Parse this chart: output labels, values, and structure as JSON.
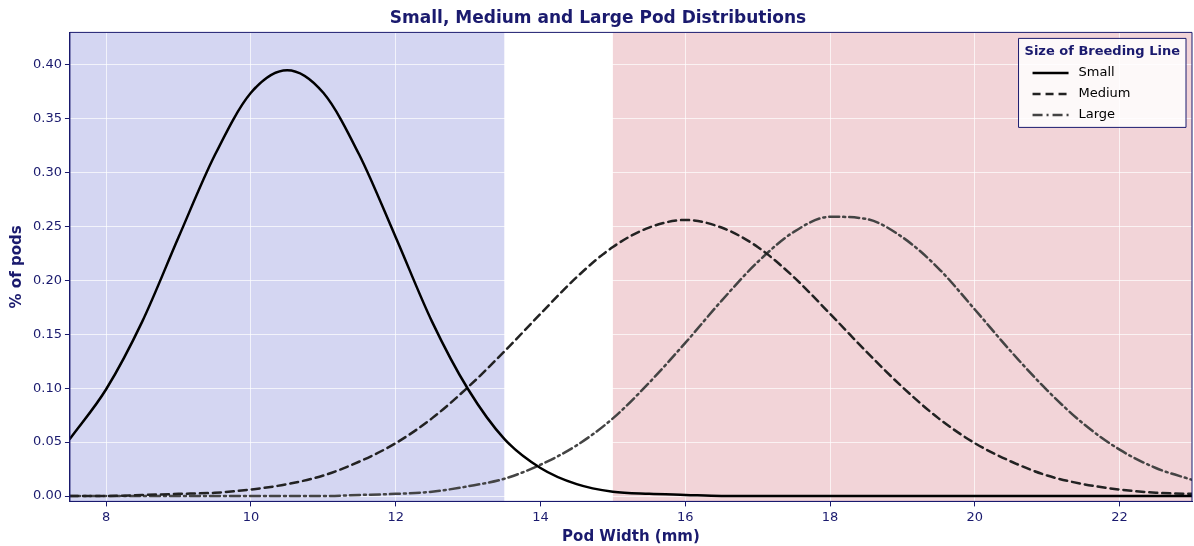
{
  "chart_data": {
    "type": "line",
    "title": "Small, Medium and Large Pod Distributions",
    "xlabel": "Pod Width (mm)",
    "ylabel": "% of pods",
    "legend_title": "Size of Breeding Line",
    "x": [
      7.5,
      8,
      8.5,
      9,
      9.5,
      10,
      10.5,
      11,
      11.5,
      12,
      12.5,
      13,
      13.5,
      14,
      14.5,
      15,
      15.5,
      16,
      16.5,
      17,
      17.5,
      18,
      18.5,
      19,
      19.5,
      20,
      20.5,
      21,
      21.5,
      22,
      22.5,
      23
    ],
    "series": [
      {
        "name": "Small",
        "color": "#000000",
        "line_style": "solid",
        "values": [
          0.053,
          0.099,
          0.162,
          0.24,
          0.316,
          0.374,
          0.395,
          0.374,
          0.316,
          0.24,
          0.162,
          0.099,
          0.053,
          0.026,
          0.011,
          0.004,
          0.002,
          0.001,
          0,
          0,
          0,
          0,
          0,
          0,
          0,
          0,
          0,
          0,
          0,
          0,
          0,
          0
        ]
      },
      {
        "name": "Medium",
        "color": "#222222",
        "line_style": "dashed",
        "values": [
          0,
          0,
          0.001,
          0.002,
          0.003,
          0.006,
          0.011,
          0.019,
          0.032,
          0.049,
          0.072,
          0.101,
          0.134,
          0.169,
          0.203,
          0.231,
          0.249,
          0.256,
          0.249,
          0.231,
          0.203,
          0.169,
          0.134,
          0.101,
          0.072,
          0.049,
          0.032,
          0.019,
          0.011,
          0.006,
          0.003,
          0.002
        ]
      },
      {
        "name": "Large",
        "color": "#444444",
        "line_style": "dashdot",
        "values": [
          0,
          0,
          0,
          0,
          0,
          0,
          0,
          0,
          0.001,
          0.002,
          0.004,
          0.009,
          0.016,
          0.029,
          0.047,
          0.072,
          0.105,
          0.142,
          0.181,
          0.217,
          0.245,
          0.259,
          0.257,
          0.24,
          0.211,
          0.173,
          0.134,
          0.098,
          0.067,
          0.043,
          0.026,
          0.015
        ]
      }
    ],
    "xlim": [
      7.5,
      23
    ],
    "xticks": [
      8,
      10,
      12,
      14,
      16,
      18,
      20,
      22
    ],
    "ylim": [
      -0.005,
      0.43
    ],
    "yticks": [
      {
        "value": 0,
        "label": "0.00"
      },
      0.05,
      {
        "value": 0.1,
        "label": "0.10"
      },
      0.15,
      {
        "value": 0.2,
        "label": "0.20"
      },
      0.25,
      {
        "value": 0.3,
        "label": "0.30"
      },
      0.35,
      {
        "value": 0.4,
        "label": "0.40"
      }
    ],
    "bands": [
      {
        "axis": "x",
        "from": 7.5,
        "to": 13.5,
        "color": "#d4d6f2"
      },
      {
        "axis": "x",
        "from": 15,
        "to": 23,
        "color": "#f2d4d8"
      }
    ],
    "grid": true,
    "legend": "top right",
    "marker": "none"
  }
}
